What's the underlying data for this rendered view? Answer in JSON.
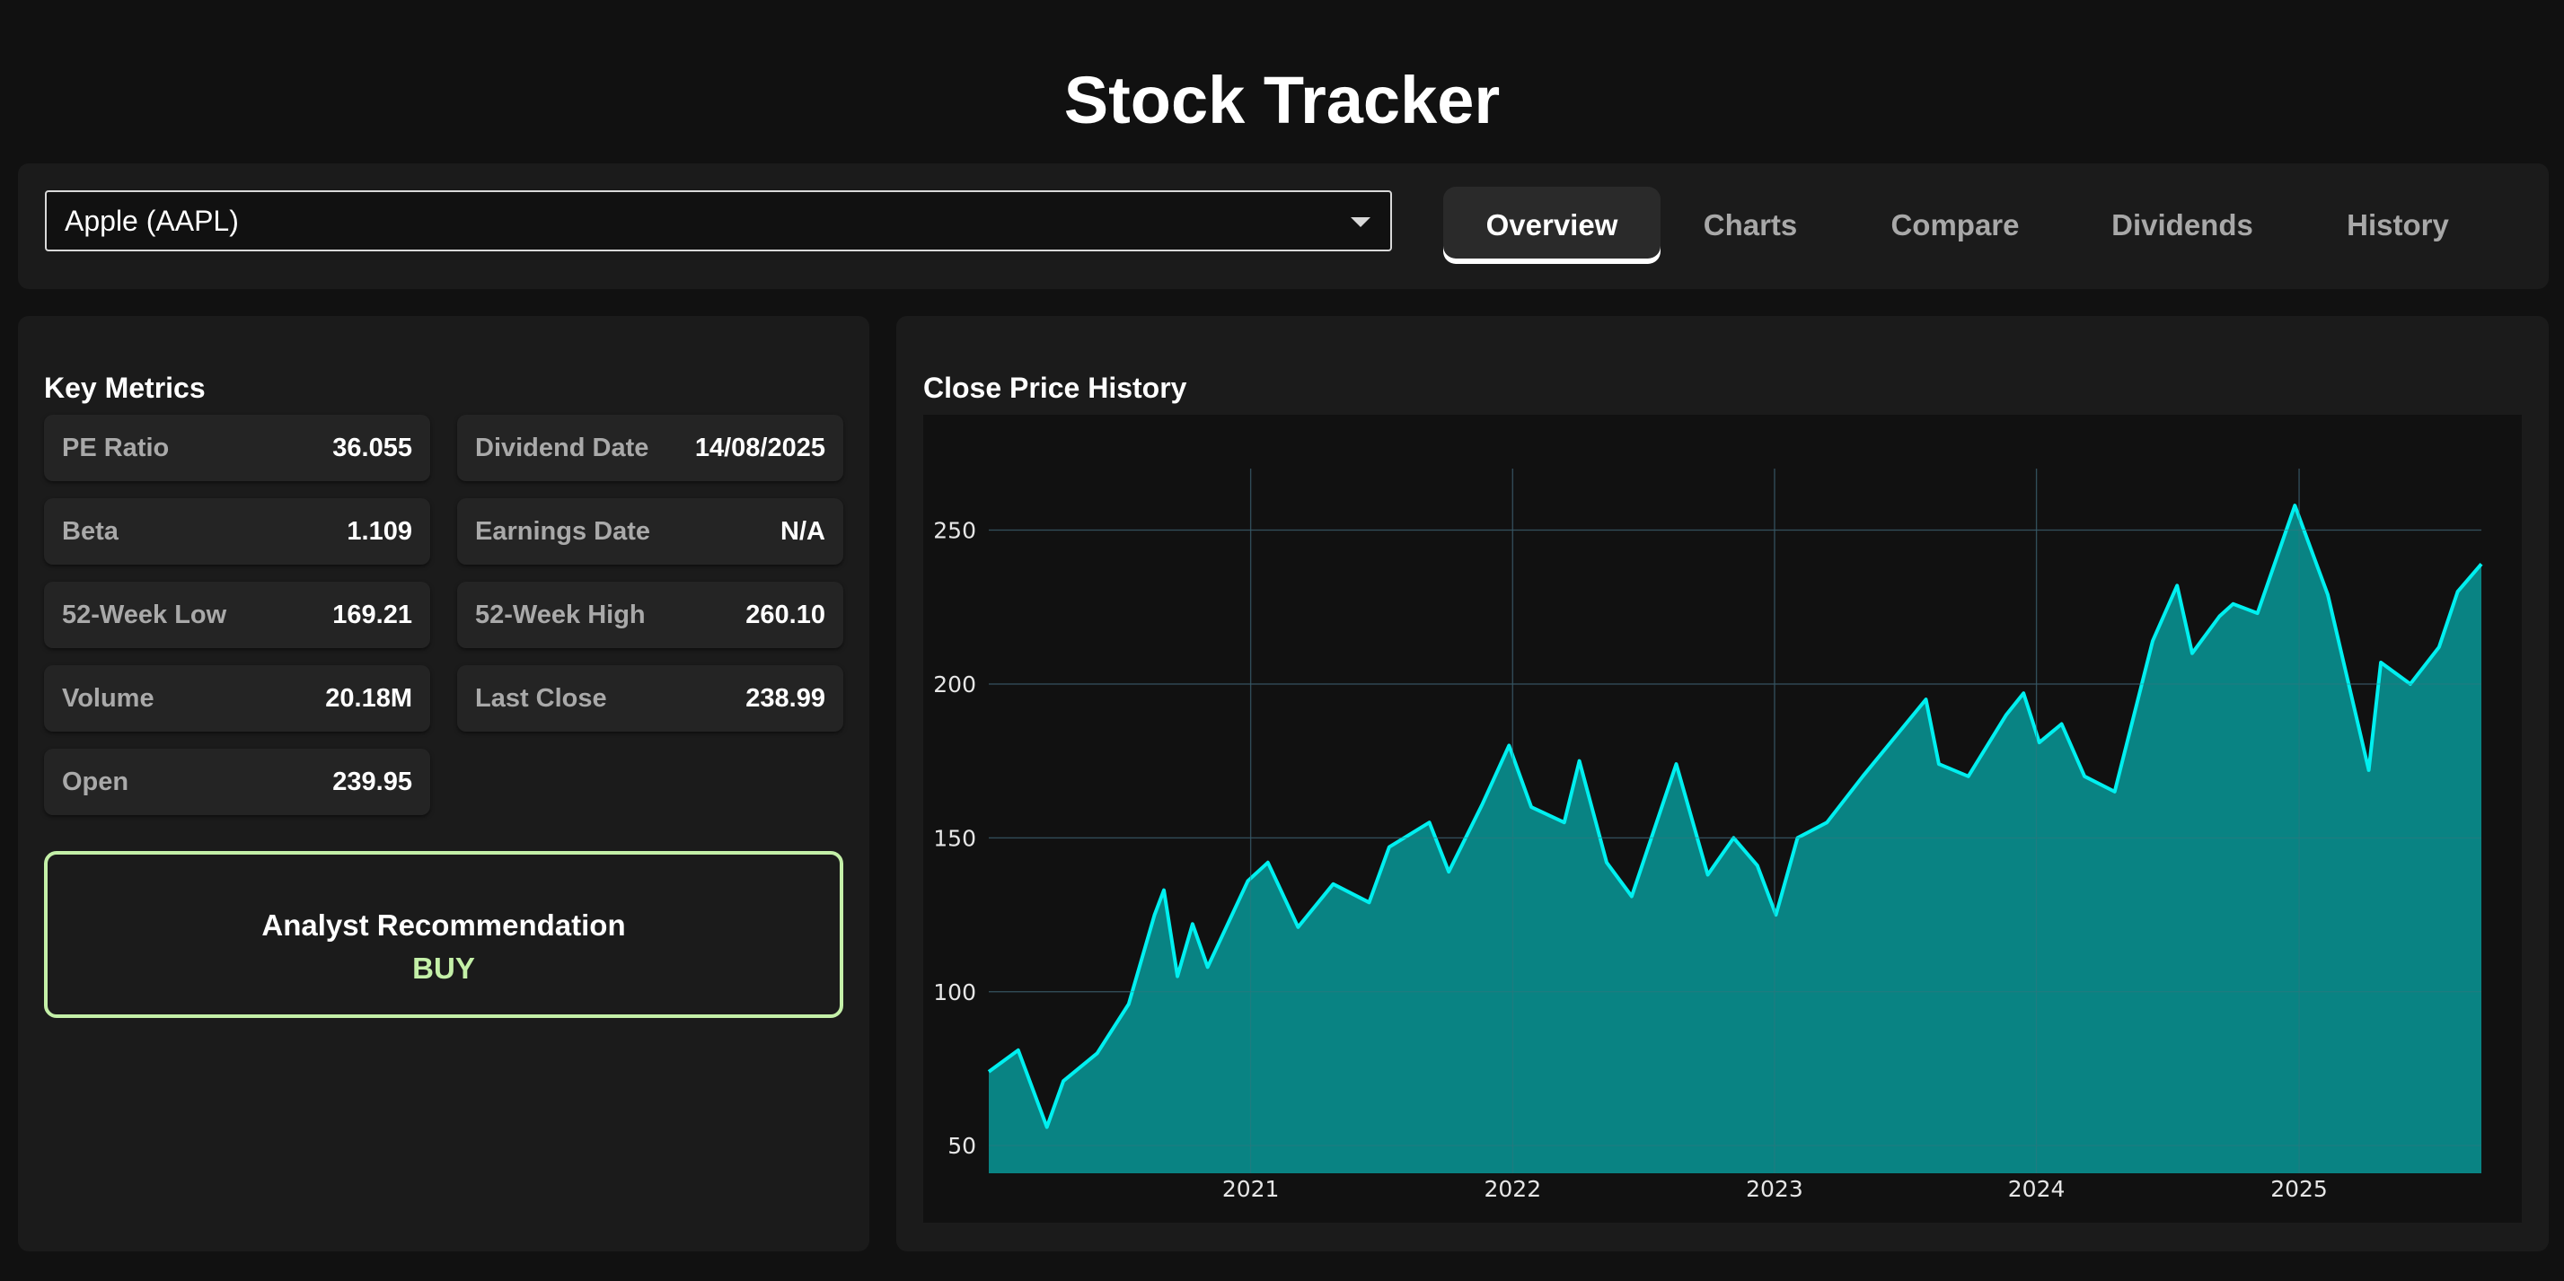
{
  "app": {
    "title": "Stock Tracker"
  },
  "selector": {
    "value": "Apple (AAPL)"
  },
  "tabs": [
    {
      "label": "Overview",
      "active": true
    },
    {
      "label": "Charts",
      "active": false
    },
    {
      "label": "Compare",
      "active": false
    },
    {
      "label": "Dividends",
      "active": false
    },
    {
      "label": "History",
      "active": false
    }
  ],
  "metrics": {
    "title": "Key Metrics",
    "items": [
      {
        "label": "PE Ratio",
        "value": "36.055"
      },
      {
        "label": "Dividend Date",
        "value": "14/08/2025"
      },
      {
        "label": "Beta",
        "value": "1.109"
      },
      {
        "label": "Earnings Date",
        "value": "N/A"
      },
      {
        "label": "52-Week Low",
        "value": "169.21"
      },
      {
        "label": "52-Week High",
        "value": "260.10"
      },
      {
        "label": "Volume",
        "value": "20.18M"
      },
      {
        "label": "Last Close",
        "value": "238.99"
      },
      {
        "label": "Open",
        "value": "239.95"
      }
    ]
  },
  "analyst": {
    "title": "Analyst Recommendation",
    "value": "BUY",
    "color": "#c4f0a8"
  },
  "chart": {
    "title": "Close Price History"
  },
  "colors": {
    "line": "#00f0f0",
    "fill": "#0a8a8a",
    "grid": "#2a3340",
    "background": "#111111"
  },
  "chart_data": {
    "type": "area",
    "title": "Close Price History",
    "xlabel": "",
    "ylabel": "",
    "x_ticks": [
      "2021",
      "2022",
      "2023",
      "2024",
      "2025"
    ],
    "y_ticks": [
      50,
      100,
      150,
      200,
      250
    ],
    "ylim": [
      41,
      270
    ],
    "xlim": [
      "2020-01-02",
      "2025-09-12"
    ],
    "grid": true,
    "legend": "none",
    "series": [
      {
        "x": [
          "2020-01-02",
          "2020-02-12",
          "2020-03-23",
          "2020-04-15",
          "2020-06-01",
          "2020-07-15",
          "2020-08-20",
          "2020-09-02",
          "2020-09-21",
          "2020-10-12",
          "2020-11-02",
          "2020-12-28",
          "2021-01-25",
          "2021-03-08",
          "2021-04-26",
          "2021-06-15",
          "2021-07-13",
          "2021-09-07",
          "2021-10-04",
          "2021-11-20",
          "2021-12-27",
          "2022-01-27",
          "2022-03-14",
          "2022-04-04",
          "2022-05-12",
          "2022-06-16",
          "2022-08-17",
          "2022-09-30",
          "2022-11-05",
          "2022-12-08",
          "2023-01-03",
          "2023-02-02",
          "2023-03-15",
          "2023-05-04",
          "2023-07-31",
          "2023-08-18",
          "2023-09-28",
          "2023-11-20",
          "2023-12-14",
          "2024-01-05",
          "2024-02-05",
          "2024-03-08",
          "2024-04-19",
          "2024-06-11",
          "2024-07-15",
          "2024-08-05",
          "2024-09-12",
          "2024-10-01",
          "2024-11-04",
          "2024-12-26",
          "2025-02-10",
          "2025-04-08",
          "2025-04-25",
          "2025-06-05",
          "2025-07-15",
          "2025-08-10",
          "2025-09-12"
        ],
        "y": [
          74,
          81,
          56,
          71,
          80,
          96,
          125,
          133,
          105,
          122,
          108,
          136,
          142,
          121,
          135,
          129,
          147,
          155,
          139,
          161,
          180,
          160,
          155,
          175,
          142,
          131,
          174,
          138,
          150,
          141,
          125,
          150,
          155,
          170,
          195,
          174,
          170,
          190,
          197,
          181,
          187,
          170,
          165,
          214,
          232,
          210,
          222,
          226,
          223,
          258,
          229,
          172,
          207,
          200,
          212,
          230,
          239
        ]
      }
    ]
  }
}
